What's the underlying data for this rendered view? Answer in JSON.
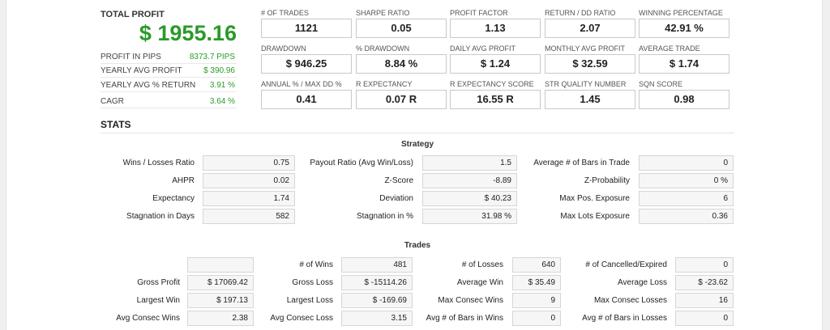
{
  "summary": {
    "title": "TOTAL PROFIT",
    "value": "$ 1955.16",
    "rows": [
      {
        "label": "PROFIT IN PIPS",
        "value": "8373.7 PIPS"
      },
      {
        "label": "YEARLY AVG PROFIT",
        "value": "$ 390.96"
      },
      {
        "label": "YEARLY AVG % RETURN",
        "value": "3.91 %"
      },
      {
        "label": "CAGR",
        "value": "3.64 %"
      }
    ]
  },
  "metrics": [
    [
      {
        "label": "# OF TRADES",
        "value": "1121"
      },
      {
        "label": "SHARPE RATIO",
        "value": "0.05"
      },
      {
        "label": "PROFIT FACTOR",
        "value": "1.13"
      },
      {
        "label": "RETURN / DD RATIO",
        "value": "2.07"
      },
      {
        "label": "WINNING PERCENTAGE",
        "value": "42.91 %"
      }
    ],
    [
      {
        "label": "DRAWDOWN",
        "value": "$ 946.25"
      },
      {
        "label": "% DRAWDOWN",
        "value": "8.84 %"
      },
      {
        "label": "DAILY AVG PROFIT",
        "value": "$ 1.24"
      },
      {
        "label": "MONTHLY AVG PROFIT",
        "value": "$ 32.59"
      },
      {
        "label": "AVERAGE TRADE",
        "value": "$ 1.74"
      }
    ],
    [
      {
        "label": "ANNUAL % / MAX DD %",
        "value": "0.41"
      },
      {
        "label": "R EXPECTANCY",
        "value": "0.07 R"
      },
      {
        "label": "R EXPECTANCY SCORE",
        "value": "16.55 R"
      },
      {
        "label": "STR QUALITY NUMBER",
        "value": "1.45"
      },
      {
        "label": "SQN SCORE",
        "value": "0.98"
      }
    ]
  ],
  "stats": {
    "title": "STATS",
    "strategy": {
      "title": "Strategy",
      "rows": [
        [
          {
            "label": "Wins / Losses Ratio",
            "value": "0.75"
          },
          {
            "label": "Payout Ratio (Avg Win/Loss)",
            "value": "1.5"
          },
          {
            "label": "Average # of Bars in Trade",
            "value": "0"
          }
        ],
        [
          {
            "label": "AHPR",
            "value": "0.02"
          },
          {
            "label": "Z-Score",
            "value": "-8.89"
          },
          {
            "label": "Z-Probability",
            "value": "0 %"
          }
        ],
        [
          {
            "label": "Expectancy",
            "value": "1.74"
          },
          {
            "label": "Deviation",
            "value": "$ 40.23"
          },
          {
            "label": "Max Pos. Exposure",
            "value": "6"
          }
        ],
        [
          {
            "label": "Stagnation in Days",
            "value": "582"
          },
          {
            "label": "Stagnation in %",
            "value": "31.98 %"
          },
          {
            "label": "Max Lots Exposure",
            "value": "0.36"
          }
        ]
      ]
    },
    "trades": {
      "title": "Trades",
      "rows": [
        [
          {
            "label": "",
            "value": ""
          },
          {
            "label": "# of Wins",
            "value": "481"
          },
          {
            "label": "# of Losses",
            "value": "640"
          },
          {
            "label": "# of Cancelled/Expired",
            "value": "0"
          }
        ],
        [
          {
            "label": "Gross Profit",
            "value": "$ 17069.42"
          },
          {
            "label": "Gross Loss",
            "value": "$ -15114.26"
          },
          {
            "label": "Average Win",
            "value": "$ 35.49"
          },
          {
            "label": "Average Loss",
            "value": "$ -23.62"
          }
        ],
        [
          {
            "label": "Largest Win",
            "value": "$ 197.13"
          },
          {
            "label": "Largest Loss",
            "value": "$ -169.69"
          },
          {
            "label": "Max Consec Wins",
            "value": "9"
          },
          {
            "label": "Max Consec Losses",
            "value": "16"
          }
        ],
        [
          {
            "label": "Avg Consec Wins",
            "value": "2.38"
          },
          {
            "label": "Avg Consec Loss",
            "value": "3.15"
          },
          {
            "label": "Avg # of Bars in Wins",
            "value": "0"
          },
          {
            "label": "Avg # of Bars in Losses",
            "value": "0"
          }
        ]
      ]
    }
  }
}
